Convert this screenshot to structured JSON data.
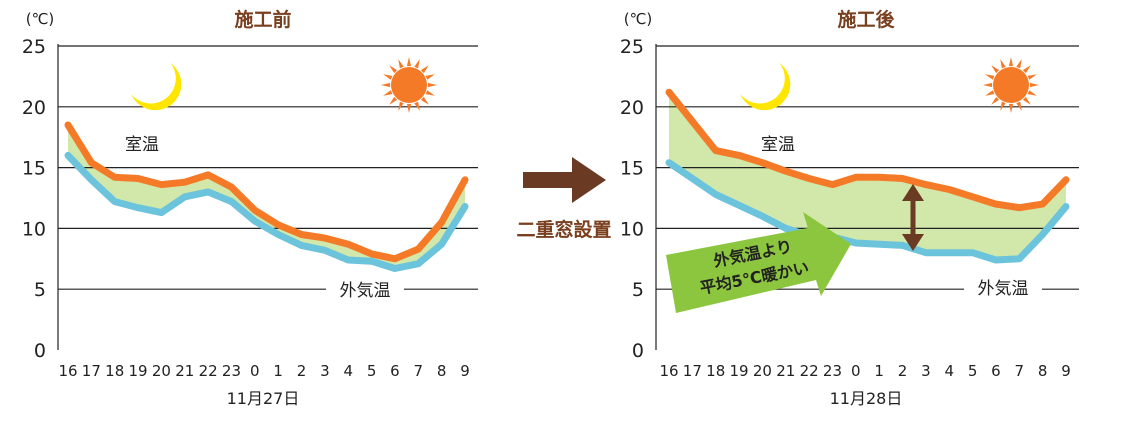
{
  "middle": {
    "label": "二重窓設置",
    "arrow_color": "#6b3a22"
  },
  "colors": {
    "room": "#f47a27",
    "outdoor": "#6cc3dc",
    "fill": "#d2e8ab",
    "grid": "#222222",
    "title": "#7a3f1e",
    "sun": "#f47a27",
    "moon": "#ffe600",
    "callout": "#8cc63f",
    "delta_arrow": "#6b3a22"
  },
  "chart_data": [
    {
      "type": "line",
      "title": "施工前",
      "unit": "(℃)",
      "xlabel": "11月27日",
      "ylim": [
        0,
        25
      ],
      "yticks": [
        0,
        5,
        10,
        15,
        20,
        25
      ],
      "categories": [
        "16",
        "17",
        "18",
        "19",
        "20",
        "21",
        "22",
        "23",
        "0",
        "1",
        "2",
        "3",
        "4",
        "5",
        "6",
        "7",
        "8",
        "9"
      ],
      "series": [
        {
          "name": "室温",
          "values": [
            18.5,
            15.4,
            14.2,
            14.1,
            13.6,
            13.8,
            14.4,
            13.4,
            11.5,
            10.3,
            9.5,
            9.2,
            8.7,
            7.9,
            7.5,
            8.3,
            10.5,
            14.0
          ]
        },
        {
          "name": "外気温",
          "values": [
            16.0,
            14.0,
            12.2,
            11.7,
            11.3,
            12.6,
            13.0,
            12.2,
            10.6,
            9.5,
            8.6,
            8.2,
            7.4,
            7.3,
            6.7,
            7.1,
            8.7,
            11.8
          ]
        }
      ],
      "icons": [
        "moon-icon",
        "sun-icon"
      ]
    },
    {
      "type": "line",
      "title": "施工後",
      "unit": "(℃)",
      "xlabel": "11月28日",
      "ylim": [
        0,
        25
      ],
      "yticks": [
        0,
        5,
        10,
        15,
        20,
        25
      ],
      "categories": [
        "16",
        "17",
        "18",
        "19",
        "20",
        "21",
        "22",
        "23",
        "0",
        "1",
        "2",
        "3",
        "4",
        "5",
        "6",
        "7",
        "8",
        "9"
      ],
      "series": [
        {
          "name": "室温",
          "values": [
            21.2,
            18.8,
            16.4,
            16.0,
            15.4,
            14.7,
            14.1,
            13.6,
            14.2,
            14.2,
            14.1,
            13.6,
            13.2,
            12.6,
            12.0,
            11.7,
            12.0,
            14.0
          ]
        },
        {
          "name": "外気温",
          "values": [
            15.4,
            14.1,
            12.8,
            11.9,
            11.0,
            10.0,
            9.4,
            9.3,
            8.8,
            8.7,
            8.6,
            8.0,
            8.0,
            8.0,
            7.4,
            7.5,
            9.5,
            11.8
          ]
        }
      ],
      "callout": {
        "line1": "外気温より",
        "line2": "平均5℃暖かい"
      },
      "icons": [
        "moon-icon",
        "sun-icon",
        "up-down-arrow-icon"
      ]
    }
  ]
}
